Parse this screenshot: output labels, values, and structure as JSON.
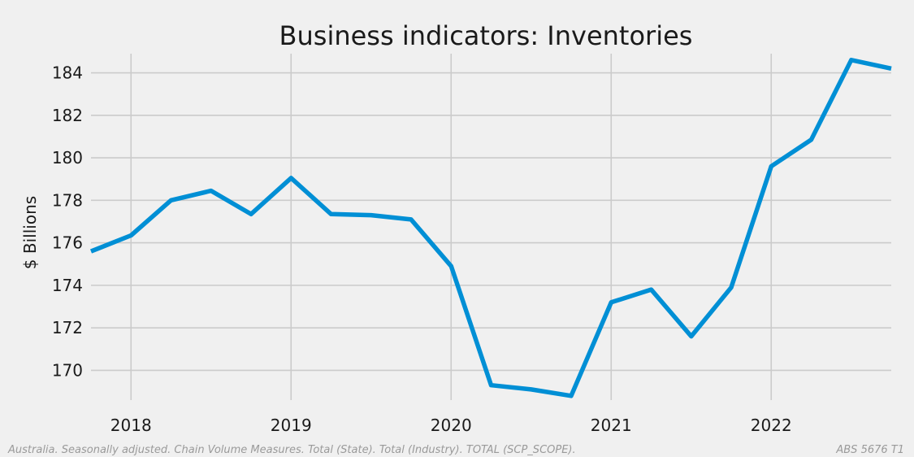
{
  "chart_data": {
    "type": "line",
    "title": "Business indicators: Inventories",
    "ylabel": "$ Billions",
    "xlabel": "",
    "x_ticks": [
      "2018",
      "2019",
      "2020",
      "2021",
      "2022"
    ],
    "y_ticks": [
      170,
      172,
      174,
      176,
      178,
      180,
      182,
      184
    ],
    "xlim": [
      "2017-10",
      "2022-10"
    ],
    "ylim": [
      168.6,
      184.9
    ],
    "grid": true,
    "colors": {
      "line": "#008fd5",
      "background": "#f0f0f0",
      "grid": "#cbcbcb"
    },
    "series": [
      {
        "x": [
          "2017-10",
          "2018-01",
          "2018-04",
          "2018-07",
          "2018-10",
          "2019-01",
          "2019-04",
          "2019-07",
          "2019-10",
          "2020-01",
          "2020-04",
          "2020-07",
          "2020-10",
          "2021-01",
          "2021-04",
          "2021-07",
          "2021-10",
          "2022-01",
          "2022-04",
          "2022-07",
          "2022-10"
        ],
        "values": [
          175.6,
          176.35,
          178.0,
          178.45,
          177.35,
          179.05,
          177.35,
          177.3,
          177.1,
          174.9,
          169.3,
          169.1,
          168.8,
          173.2,
          173.8,
          171.6,
          173.9,
          179.6,
          180.85,
          184.6,
          184.2
        ]
      }
    ]
  },
  "footer": {
    "left": "Australia. Seasonally adjusted. Chain Volume Measures. Total (State). Total (Industry). TOTAL (SCP_SCOPE).",
    "right": "ABS 5676 T1"
  }
}
